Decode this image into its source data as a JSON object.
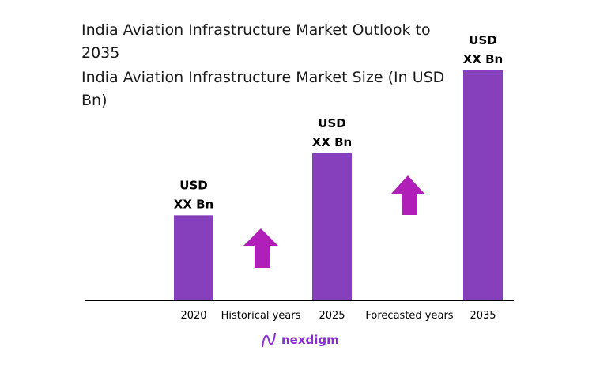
{
  "title": "India Aviation Infrastructure Market Outlook to 2035",
  "subtitle": "India Aviation Infrastructure Market Size (In USD Bn)",
  "chart_data": {
    "type": "bar",
    "categories": [
      "2020",
      "2025",
      "2035"
    ],
    "relative_values": [
      0.37,
      0.64,
      1.0
    ],
    "data_labels": [
      [
        "USD",
        "XX Bn"
      ],
      [
        "USD",
        "XX Bn"
      ],
      [
        "USD",
        "XX Bn"
      ]
    ],
    "period_labels": [
      "Historical years",
      "Forecasted years"
    ],
    "bar_color": "#8640bb",
    "arrow_color": "#b020b8",
    "grid": false
  },
  "brand": "nexdigm"
}
